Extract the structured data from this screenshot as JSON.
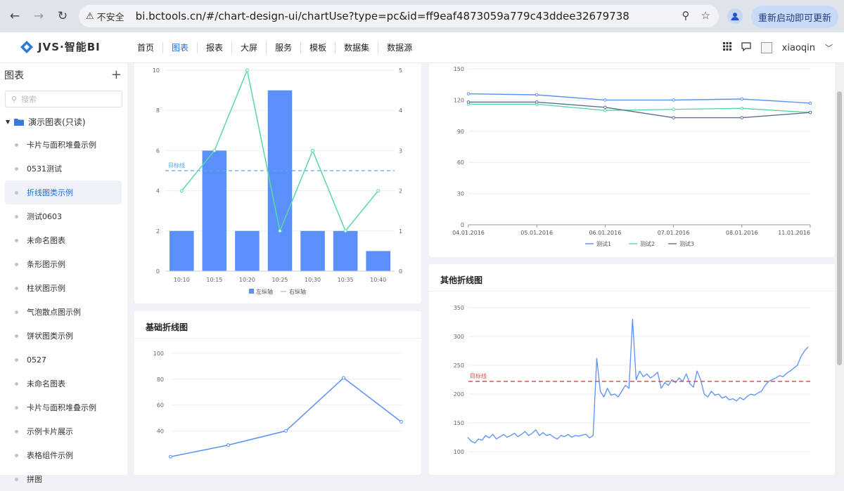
{
  "browser": {
    "security_label": "不安全",
    "url": "bi.bctools.cn/#/chart-design-ui/chartUse?type=pc&id=ff9eaf4873059a779c43ddee32679738",
    "update_button": "重新启动即可更新"
  },
  "app": {
    "logo_text": "JVS·智能BI",
    "menu": [
      "首页",
      "图表",
      "报表",
      "大屏",
      "服务",
      "模板",
      "数据集",
      "数据源"
    ],
    "active_menu_index": 1,
    "username": "xiaoqin"
  },
  "sidebar": {
    "title": "图表",
    "add_label": "+",
    "search_placeholder": "搜索",
    "folder_label": "演示图表(只读)",
    "items": [
      "卡片与面积堆叠示例",
      "0531测试",
      "折线图类示例",
      "测试0603",
      "未命名图表",
      "条形图示例",
      "柱状图示例",
      "气泡散点图示例",
      "饼状图类示例",
      "0527",
      "未命名图表",
      "卡片与面积堆叠示例",
      "示例卡片展示",
      "表格组件示例",
      "拼图"
    ],
    "active_index": 2
  },
  "colors": {
    "accent": "#1e6fe8",
    "bar": "#5b8ff9",
    "green": "#5ad8a6",
    "dark": "#5d7092",
    "target_red": "#d9534f",
    "target_blue": "#5aa6e8"
  },
  "chart_data": [
    {
      "type": "bar",
      "categories": [
        "10:10",
        "10:15",
        "10:20",
        "10:25",
        "10:30",
        "10:35",
        "10:40"
      ],
      "series": [
        {
          "name": "左纵轴",
          "type": "bar",
          "values": [
            2,
            6,
            2,
            9,
            2,
            2,
            1
          ]
        },
        {
          "name": "右纵轴",
          "type": "line",
          "axis": "right",
          "values": [
            2,
            3,
            5,
            1,
            3,
            1,
            2
          ]
        }
      ],
      "ylim": [
        0,
        10
      ],
      "yticks": [
        0,
        2,
        4,
        6,
        8,
        10
      ],
      "y2lim": [
        0,
        5
      ],
      "y2ticks": [
        0,
        1,
        2,
        3,
        4,
        5
      ],
      "target_line": {
        "label": "目标线",
        "value": 5
      },
      "legend": "bottom"
    },
    {
      "type": "line",
      "categories": [
        "04.01.2016",
        "05.01.2016",
        "06.01.2016",
        "07.01.2016",
        "08.01.2016",
        "11.01.2016"
      ],
      "series": [
        {
          "name": "测试1",
          "values": [
            126,
            125,
            120,
            120,
            121,
            117
          ]
        },
        {
          "name": "测试2",
          "values": [
            116,
            116,
            110,
            111,
            112,
            108
          ]
        },
        {
          "name": "测试3",
          "values": [
            118,
            118,
            113,
            103,
            103,
            108
          ]
        }
      ],
      "ylim": [
        0,
        150
      ],
      "yticks": [
        0,
        30,
        60,
        90,
        120,
        150
      ],
      "legend": "bottom"
    },
    {
      "title": "基础折线图",
      "type": "line",
      "series": [
        {
          "values": [
            20,
            29,
            40,
            81,
            47
          ]
        }
      ],
      "ylim": [
        0,
        100
      ],
      "yticks": [
        40,
        60,
        80,
        100
      ]
    },
    {
      "title": "其他折线图",
      "type": "line",
      "series": [
        {
          "values": [
            125,
            118,
            115,
            122,
            120,
            128,
            124,
            130,
            122,
            126,
            130,
            125,
            128,
            132,
            126,
            130,
            135,
            128,
            132,
            138,
            128,
            133,
            128,
            130,
            125,
            122,
            128,
            126,
            130,
            125,
            128,
            127,
            129,
            130,
            124,
            128,
            262,
            205,
            195,
            210,
            198,
            200,
            195,
            205,
            215,
            210,
            330,
            225,
            240,
            230,
            235,
            228,
            232,
            238,
            210,
            220,
            215,
            225,
            220,
            228,
            222,
            235,
            218,
            212,
            240,
            225,
            200,
            195,
            205,
            198,
            200,
            193,
            196,
            190,
            192,
            188,
            194,
            190,
            196,
            200,
            198,
            202,
            205,
            215,
            222,
            225,
            228,
            232,
            230,
            236,
            240,
            245,
            250,
            265,
            275,
            282
          ]
        }
      ],
      "ylim": [
        100,
        350
      ],
      "yticks": [
        100,
        150,
        200,
        250,
        300,
        350
      ],
      "target_line": {
        "label": "目标线",
        "value": 222
      }
    }
  ]
}
